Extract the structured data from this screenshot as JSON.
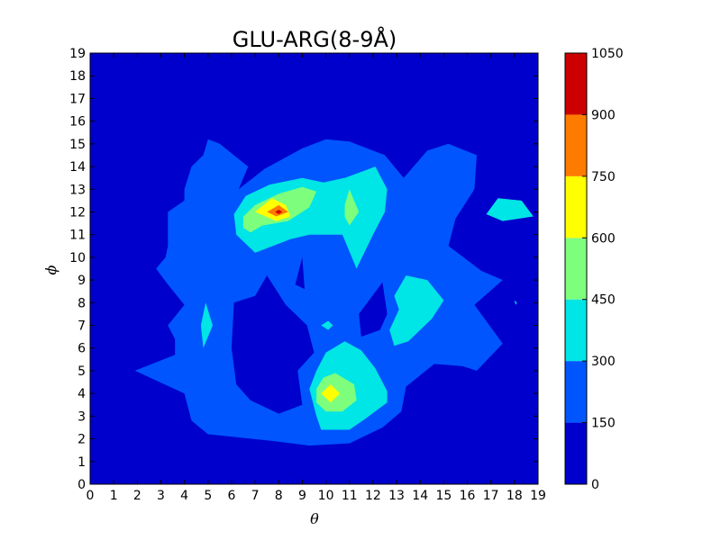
{
  "chart_data": {
    "type": "heatmap",
    "title": "GLU-ARG(8-9Å)",
    "xlabel": "θ",
    "ylabel": "ϕ",
    "xlim": [
      0,
      19
    ],
    "ylim": [
      0,
      19
    ],
    "x_ticks": [
      "0",
      "1",
      "2",
      "3",
      "4",
      "5",
      "6",
      "7",
      "8",
      "9",
      "10",
      "11",
      "12",
      "13",
      "14",
      "15",
      "16",
      "17",
      "18",
      "19"
    ],
    "y_ticks": [
      "0",
      "1",
      "2",
      "3",
      "4",
      "5",
      "6",
      "7",
      "8",
      "9",
      "10",
      "11",
      "12",
      "13",
      "14",
      "15",
      "16",
      "17",
      "18",
      "19"
    ],
    "grid": false,
    "colorbar": {
      "levels": [
        0,
        150,
        300,
        450,
        600,
        750,
        900,
        1050
      ],
      "tick_labels": [
        "0",
        "150",
        "300",
        "450",
        "600",
        "750",
        "900",
        "1050"
      ],
      "colors": [
        "#0000cd",
        "#0055ff",
        "#00e5e5",
        "#7dff7d",
        "#ffff00",
        "#ff7b00",
        "#cd0000"
      ]
    },
    "contour_regions": [
      {
        "level_index": 1,
        "polygon": [
          [
            5,
            15.2
          ],
          [
            5.5,
            15
          ],
          [
            6.7,
            14
          ],
          [
            6.3,
            13
          ],
          [
            7.4,
            13.9
          ],
          [
            9,
            14.8
          ],
          [
            10,
            15.2
          ],
          [
            11,
            15.1
          ],
          [
            12.5,
            14.5
          ],
          [
            13.3,
            13.5
          ],
          [
            14.3,
            14.7
          ],
          [
            15.2,
            15
          ],
          [
            16.4,
            14.5
          ],
          [
            16.3,
            13
          ],
          [
            15.5,
            11.7
          ],
          [
            15.2,
            10.5
          ],
          [
            16.6,
            9.4
          ],
          [
            17.5,
            9
          ],
          [
            16.3,
            7.9
          ],
          [
            17.5,
            6.2
          ],
          [
            16.4,
            5
          ],
          [
            15.8,
            5.2
          ],
          [
            14.6,
            5.3
          ],
          [
            13.4,
            4.3
          ],
          [
            13.2,
            3.2
          ],
          [
            12.4,
            2.5
          ],
          [
            11,
            1.8
          ],
          [
            9.3,
            1.7
          ],
          [
            7.8,
            1.9
          ],
          [
            5,
            2.2
          ],
          [
            4.3,
            2.8
          ],
          [
            4,
            4
          ],
          [
            1.9,
            5
          ],
          [
            3.6,
            5.7
          ],
          [
            3.6,
            6.4
          ],
          [
            3.3,
            7
          ],
          [
            4,
            7.9
          ],
          [
            3.3,
            8.8
          ],
          [
            2.8,
            9.5
          ],
          [
            3.2,
            10
          ],
          [
            3.3,
            10.5
          ],
          [
            3.3,
            12
          ],
          [
            4,
            12.5
          ],
          [
            4,
            13
          ],
          [
            4.3,
            14
          ],
          [
            4.8,
            14.5
          ]
        ]
      },
      {
        "level_index": 0,
        "polygon": [
          [
            6.1,
            8
          ],
          [
            7,
            8.3
          ],
          [
            7.5,
            9.2
          ],
          [
            8.3,
            7.9
          ],
          [
            9.2,
            7
          ],
          [
            9.5,
            5.8
          ],
          [
            8.8,
            5
          ],
          [
            9,
            3.5
          ],
          [
            8,
            3.1
          ],
          [
            6.8,
            3.7
          ],
          [
            6.2,
            4.4
          ],
          [
            6,
            6
          ]
        ]
      },
      {
        "level_index": 0,
        "polygon": [
          [
            12.4,
            8.9
          ],
          [
            12.6,
            7.5
          ],
          [
            12.3,
            6.8
          ],
          [
            11.5,
            6.5
          ],
          [
            11.4,
            7.5
          ]
        ]
      },
      {
        "level_index": 0,
        "polygon": [
          [
            9,
            10
          ],
          [
            8.7,
            8.8
          ],
          [
            9.1,
            8.6
          ]
        ]
      },
      {
        "level_index": 2,
        "polygon": [
          [
            6.1,
            11.9
          ],
          [
            6.6,
            12.7
          ],
          [
            7.6,
            13.2
          ],
          [
            9,
            13.5
          ],
          [
            9.9,
            13.3
          ],
          [
            10.8,
            13.5
          ],
          [
            12.1,
            14
          ],
          [
            12.6,
            13
          ],
          [
            12.5,
            12
          ],
          [
            12,
            11
          ],
          [
            11.3,
            9.5
          ],
          [
            10.7,
            11
          ],
          [
            9.3,
            11
          ],
          [
            8.5,
            10.8
          ],
          [
            7,
            10.2
          ],
          [
            6.2,
            11
          ]
        ]
      },
      {
        "level_index": 2,
        "polygon": [
          [
            12.9,
            8.3
          ],
          [
            13.4,
            9.2
          ],
          [
            14.3,
            9
          ],
          [
            15,
            8.1
          ],
          [
            14.5,
            7.3
          ],
          [
            13.5,
            6.3
          ],
          [
            12.9,
            6.1
          ],
          [
            12.7,
            6.8
          ],
          [
            13.1,
            7.7
          ]
        ]
      },
      {
        "level_index": 2,
        "polygon": [
          [
            10,
            5.8
          ],
          [
            10.8,
            6.3
          ],
          [
            11.5,
            5.9
          ],
          [
            12.1,
            5.1
          ],
          [
            12.6,
            4.1
          ],
          [
            12.6,
            3.6
          ],
          [
            11.7,
            2.9
          ],
          [
            11,
            2.4
          ],
          [
            9.8,
            2.4
          ],
          [
            9.6,
            3
          ],
          [
            9.3,
            4.2
          ],
          [
            9.6,
            5
          ]
        ]
      },
      {
        "level_index": 2,
        "polygon": [
          [
            4.8,
            6
          ],
          [
            4.7,
            7
          ],
          [
            4.9,
            8
          ],
          [
            5.2,
            7
          ]
        ]
      },
      {
        "level_index": 2,
        "polygon": [
          [
            17.3,
            12.6
          ],
          [
            18.3,
            12.5
          ],
          [
            18.8,
            11.8
          ],
          [
            17.5,
            11.6
          ],
          [
            16.8,
            11.9
          ]
        ]
      },
      {
        "level_index": 2,
        "polygon": [
          [
            10.1,
            7.2
          ],
          [
            10.3,
            7
          ],
          [
            10.1,
            6.8
          ],
          [
            9.8,
            7
          ]
        ]
      },
      {
        "level_index": 3,
        "polygon": [
          [
            6.5,
            11.8
          ],
          [
            7,
            12.3
          ],
          [
            8,
            12.8
          ],
          [
            9,
            13.1
          ],
          [
            9.6,
            12.9
          ],
          [
            9.3,
            12.2
          ],
          [
            8.4,
            11.6
          ],
          [
            7.3,
            11.4
          ],
          [
            6.8,
            11.1
          ],
          [
            6.5,
            11.3
          ]
        ]
      },
      {
        "level_index": 3,
        "polygon": [
          [
            10.8,
            12.3
          ],
          [
            11,
            13
          ],
          [
            11.4,
            12
          ],
          [
            11,
            11.4
          ],
          [
            10.8,
            11.8
          ]
        ]
      },
      {
        "level_index": 3,
        "polygon": [
          [
            9.9,
            4.7
          ],
          [
            10.4,
            4.9
          ],
          [
            11.2,
            4.4
          ],
          [
            11.3,
            3.7
          ],
          [
            10.7,
            3.2
          ],
          [
            10,
            3.2
          ],
          [
            9.6,
            3.6
          ],
          [
            9.6,
            4.2
          ]
        ]
      },
      {
        "level_index": 4,
        "polygon": [
          [
            7,
            12
          ],
          [
            7.7,
            12.6
          ],
          [
            8.3,
            12.3
          ],
          [
            8.5,
            11.8
          ],
          [
            7.9,
            11.6
          ]
        ]
      },
      {
        "level_index": 4,
        "polygon": [
          [
            9.8,
            4
          ],
          [
            10.2,
            4.4
          ],
          [
            10.6,
            4
          ],
          [
            10.2,
            3.6
          ]
        ]
      },
      {
        "level_index": 5,
        "polygon": [
          [
            7.5,
            12
          ],
          [
            8,
            12.3
          ],
          [
            8.4,
            12
          ],
          [
            7.9,
            11.8
          ]
        ]
      },
      {
        "level_index": 6,
        "polygon": [
          [
            7.85,
            12
          ],
          [
            8,
            12.1
          ],
          [
            8.15,
            12
          ],
          [
            8,
            11.9
          ]
        ]
      },
      {
        "level_index": 2,
        "polygon": [
          [
            18,
            8.1
          ],
          [
            18.1,
            8
          ],
          [
            18.05,
            7.9
          ]
        ]
      }
    ]
  }
}
